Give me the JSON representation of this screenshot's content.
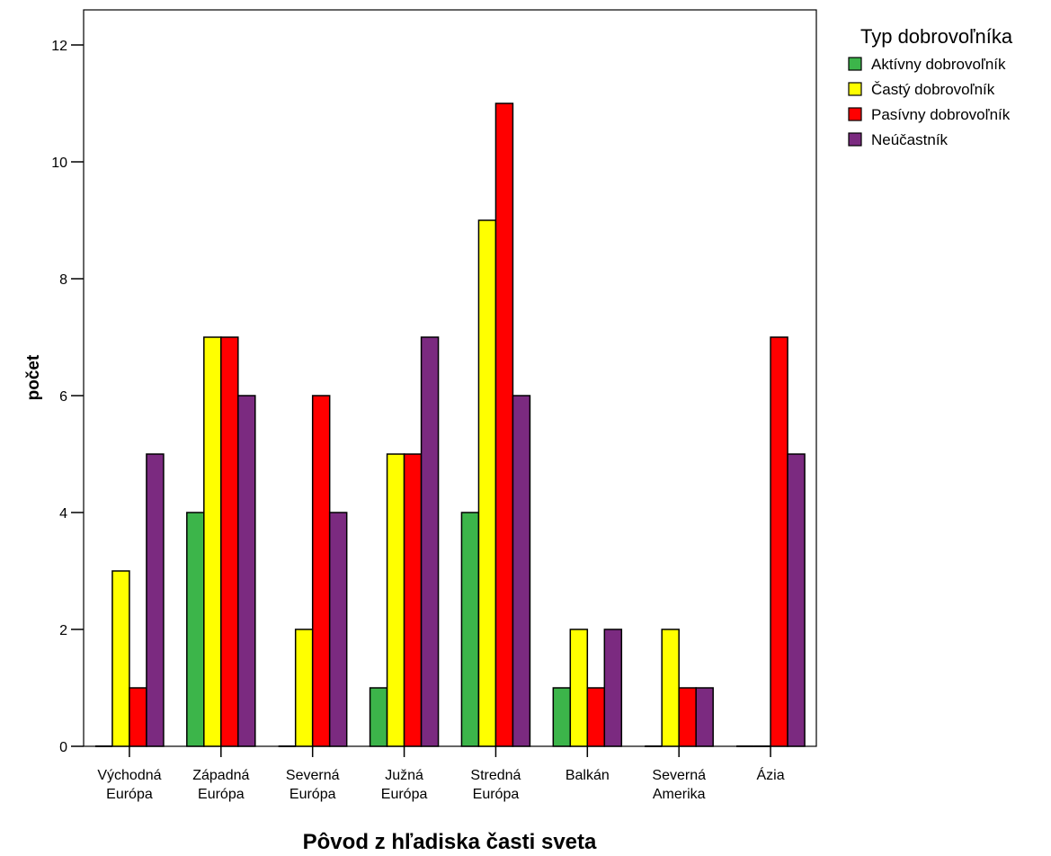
{
  "chart_data": {
    "type": "bar",
    "xlabel": "Pôvod z hľadiska časti sveta",
    "ylabel": "počet",
    "ylim": [
      0,
      12.6
    ],
    "yticks": [
      0,
      2,
      4,
      6,
      8,
      10,
      12
    ],
    "grid": false,
    "legend_position": "top-right",
    "legend_title": "Typ dobrovoľníka",
    "categories": [
      [
        "Východná",
        "Európa"
      ],
      [
        "Západná",
        "Európa"
      ],
      [
        "Severná",
        "Európa"
      ],
      [
        "Južná",
        "Európa"
      ],
      [
        "Stredná",
        "Európa"
      ],
      [
        "Balkán"
      ],
      [
        "Severná",
        "Amerika"
      ],
      [
        "Ázia"
      ]
    ],
    "series": [
      {
        "name": "Aktívny dobrovoľník",
        "color": "#3cb54a",
        "values": [
          0,
          4,
          0,
          1,
          4,
          1,
          0,
          0
        ]
      },
      {
        "name": "Častý dobrovoľník",
        "color": "#ffff00",
        "values": [
          3,
          7,
          2,
          5,
          9,
          2,
          2,
          0
        ]
      },
      {
        "name": "Pasívny dobrovoľník",
        "color": "#ff0000",
        "values": [
          1,
          7,
          6,
          5,
          11,
          1,
          1,
          7
        ]
      },
      {
        "name": "Neúčastník",
        "color": "#7b2a80",
        "values": [
          5,
          6,
          4,
          7,
          6,
          2,
          1,
          5
        ]
      }
    ]
  }
}
